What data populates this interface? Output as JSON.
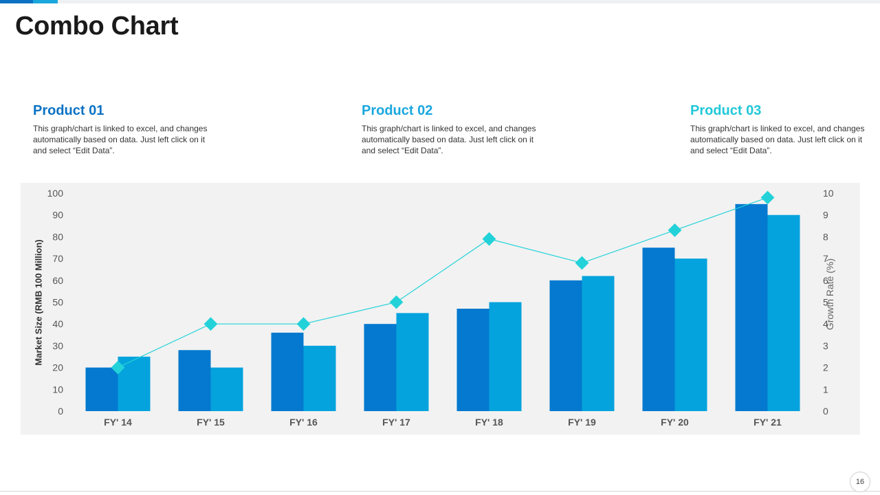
{
  "page": {
    "title": "Combo Chart",
    "page_number": "16"
  },
  "products": [
    {
      "name": "Product 01",
      "color": "#0b72c4",
      "description": "This graph/chart is linked to excel, and changes automatically based on data. Just left click on it and select “Edit Data”."
    },
    {
      "name": "Product 02",
      "color": "#1aa7de",
      "description": "This graph/chart is linked to excel, and changes automatically based on data. Just left click on it and select “Edit Data”."
    },
    {
      "name": "Product 03",
      "color": "#20c8d8",
      "description": "This graph/chart is linked to excel, and changes automatically based on data. Just left click on it and select “Edit Data”."
    }
  ],
  "chart_data": {
    "type": "bar",
    "title": "",
    "categories": [
      "FY' 14",
      "FY' 15",
      "FY' 16",
      "FY' 17",
      "FY' 18",
      "FY' 19",
      "FY' 20",
      "FY' 21"
    ],
    "ylabel": "Market Size (RMB 100 Million)",
    "y2label": "Growth Rate (%)",
    "ylim": [
      0,
      100
    ],
    "y2lim": [
      0,
      10
    ],
    "yticks": [
      "0",
      "10",
      "20",
      "30",
      "40",
      "50",
      "60",
      "70",
      "80",
      "90",
      "100"
    ],
    "y2ticks": [
      "0",
      "1",
      "2",
      "3",
      "4",
      "5",
      "6",
      "7",
      "8",
      "9",
      "10"
    ],
    "grid": false,
    "legend": "none",
    "series": [
      {
        "type": "bar",
        "axis": "left",
        "color": "#0479cf",
        "values": [
          20,
          28,
          36,
          40,
          47,
          60,
          75,
          95
        ]
      },
      {
        "type": "bar",
        "axis": "left",
        "color": "#05a3dd",
        "values": [
          25,
          20,
          30,
          45,
          50,
          62,
          70,
          90
        ]
      },
      {
        "type": "line",
        "axis": "right",
        "color": "#22d2d8",
        "values": [
          2,
          4,
          4,
          5,
          7.9,
          6.8,
          8.3,
          9.8
        ]
      }
    ]
  }
}
